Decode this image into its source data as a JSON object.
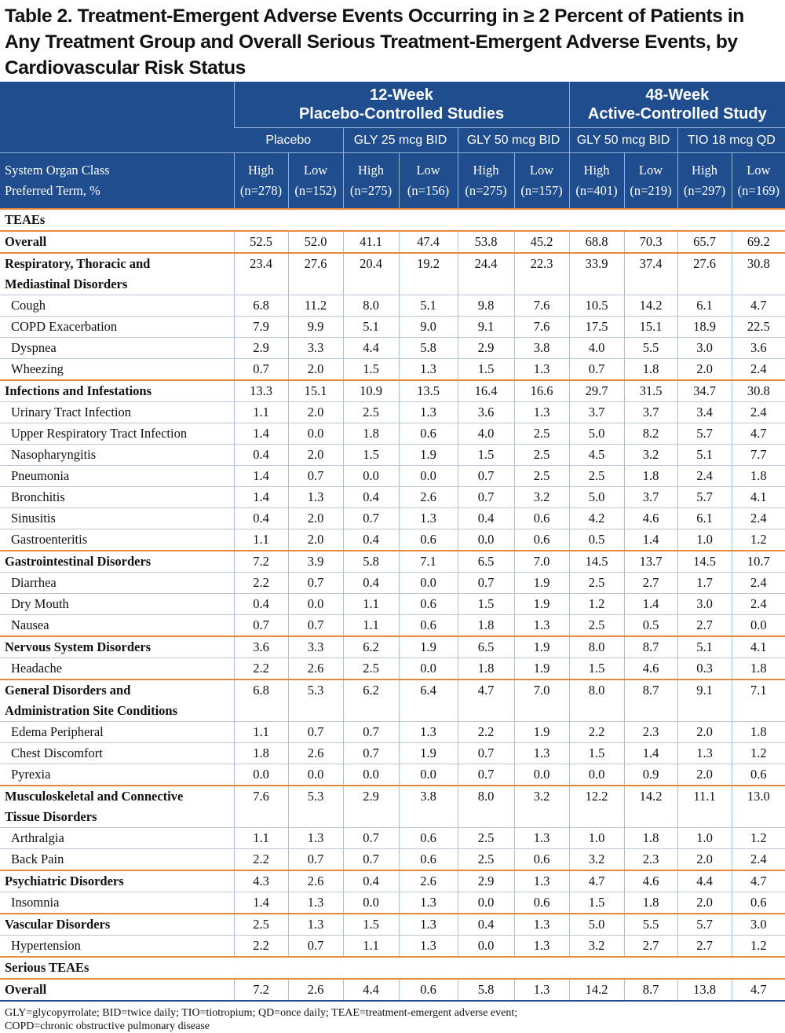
{
  "title": "Table 2. Treatment-Emergent Adverse Events Occurring in ≥ 2 Percent of Patients in Any Treatment Group and Overall Serious Treatment-Emergent Adverse Events, by Cardiovascular Risk Status",
  "table": {
    "groups": [
      {
        "lines": [
          "12-Week",
          "Placebo-Controlled Studies"
        ],
        "span": 6
      },
      {
        "lines": [
          "48-Week",
          "Active-Controlled Study"
        ],
        "span": 4
      }
    ],
    "subgroups": [
      "Placebo",
      "GLY 25 mcg BID",
      "GLY 50 mcg BID",
      "GLY 50 mcg BID",
      "TIO 18 mcg QD"
    ],
    "stub_header": [
      "System Organ Class",
      "Preferred Term, %"
    ],
    "columns": [
      {
        "level": "High",
        "n": "(n=278)"
      },
      {
        "level": "Low",
        "n": "(n=152)"
      },
      {
        "level": "High",
        "n": "(n=275)"
      },
      {
        "level": "Low",
        "n": "(n=156)"
      },
      {
        "level": "High",
        "n": "(n=275)"
      },
      {
        "level": "Low",
        "n": "(n=157)"
      },
      {
        "level": "High",
        "n": "(n=401)"
      },
      {
        "level": "Low",
        "n": "(n=219)"
      },
      {
        "level": "High",
        "n": "(n=297)"
      },
      {
        "level": "Low",
        "n": "(n=169)"
      }
    ],
    "rows": [
      {
        "kind": "section",
        "label": "TEAEs"
      },
      {
        "kind": "category",
        "label": "Overall",
        "values": [
          "52.5",
          "52.0",
          "41.1",
          "47.4",
          "53.8",
          "45.2",
          "68.8",
          "70.3",
          "65.7",
          "69.2"
        ]
      },
      {
        "kind": "category",
        "label": [
          "Respiratory, Thoracic and",
          "Mediastinal Disorders"
        ],
        "values": [
          "23.4",
          "27.6",
          "20.4",
          "19.2",
          "24.4",
          "22.3",
          "33.9",
          "37.4",
          "27.6",
          "30.8"
        ]
      },
      {
        "kind": "term",
        "label": "Cough",
        "values": [
          "6.8",
          "11.2",
          "8.0",
          "5.1",
          "9.8",
          "7.6",
          "10.5",
          "14.2",
          "6.1",
          "4.7"
        ]
      },
      {
        "kind": "term",
        "label": "COPD Exacerbation",
        "values": [
          "7.9",
          "9.9",
          "5.1",
          "9.0",
          "9.1",
          "7.6",
          "17.5",
          "15.1",
          "18.9",
          "22.5"
        ]
      },
      {
        "kind": "term",
        "label": "Dyspnea",
        "values": [
          "2.9",
          "3.3",
          "4.4",
          "5.8",
          "2.9",
          "3.8",
          "4.0",
          "5.5",
          "3.0",
          "3.6"
        ]
      },
      {
        "kind": "term",
        "label": "Wheezing",
        "values": [
          "0.7",
          "2.0",
          "1.5",
          "1.3",
          "1.5",
          "1.3",
          "0.7",
          "1.8",
          "2.0",
          "2.4"
        ]
      },
      {
        "kind": "category",
        "label": "Infections and Infestations",
        "values": [
          "13.3",
          "15.1",
          "10.9",
          "13.5",
          "16.4",
          "16.6",
          "29.7",
          "31.5",
          "34.7",
          "30.8"
        ]
      },
      {
        "kind": "term",
        "label": "Urinary Tract Infection",
        "values": [
          "1.1",
          "2.0",
          "2.5",
          "1.3",
          "3.6",
          "1.3",
          "3.7",
          "3.7",
          "3.4",
          "2.4"
        ]
      },
      {
        "kind": "term",
        "label": "Upper Respiratory Tract Infection",
        "values": [
          "1.4",
          "0.0",
          "1.8",
          "0.6",
          "4.0",
          "2.5",
          "5.0",
          "8.2",
          "5.7",
          "4.7"
        ]
      },
      {
        "kind": "term",
        "label": "Nasopharyngitis",
        "values": [
          "0.4",
          "2.0",
          "1.5",
          "1.9",
          "1.5",
          "2.5",
          "4.5",
          "3.2",
          "5.1",
          "7.7"
        ]
      },
      {
        "kind": "term",
        "label": "Pneumonia",
        "values": [
          "1.4",
          "0.7",
          "0.0",
          "0.0",
          "0.7",
          "2.5",
          "2.5",
          "1.8",
          "2.4",
          "1.8"
        ]
      },
      {
        "kind": "term",
        "label": "Bronchitis",
        "values": [
          "1.4",
          "1.3",
          "0.4",
          "2.6",
          "0.7",
          "3.2",
          "5.0",
          "3.7",
          "5.7",
          "4.1"
        ]
      },
      {
        "kind": "term",
        "label": "Sinusitis",
        "values": [
          "0.4",
          "2.0",
          "0.7",
          "1.3",
          "0.4",
          "0.6",
          "4.2",
          "4.6",
          "6.1",
          "2.4"
        ]
      },
      {
        "kind": "term",
        "label": "Gastroenteritis",
        "values": [
          "1.1",
          "2.0",
          "0.4",
          "0.6",
          "0.0",
          "0.6",
          "0.5",
          "1.4",
          "1.0",
          "1.2"
        ]
      },
      {
        "kind": "category",
        "label": "Gastrointestinal Disorders",
        "values": [
          "7.2",
          "3.9",
          "5.8",
          "7.1",
          "6.5",
          "7.0",
          "14.5",
          "13.7",
          "14.5",
          "10.7"
        ]
      },
      {
        "kind": "term",
        "label": "Diarrhea",
        "values": [
          "2.2",
          "0.7",
          "0.4",
          "0.0",
          "0.7",
          "1.9",
          "2.5",
          "2.7",
          "1.7",
          "2.4"
        ]
      },
      {
        "kind": "term",
        "label": "Dry Mouth",
        "values": [
          "0.4",
          "0.0",
          "1.1",
          "0.6",
          "1.5",
          "1.9",
          "1.2",
          "1.4",
          "3.0",
          "2.4"
        ]
      },
      {
        "kind": "term",
        "label": "Nausea",
        "values": [
          "0.7",
          "0.7",
          "1.1",
          "0.6",
          "1.8",
          "1.3",
          "2.5",
          "0.5",
          "2.7",
          "0.0"
        ]
      },
      {
        "kind": "category",
        "label": "Nervous System Disorders",
        "values": [
          "3.6",
          "3.3",
          "6.2",
          "1.9",
          "6.5",
          "1.9",
          "8.0",
          "8.7",
          "5.1",
          "4.1"
        ]
      },
      {
        "kind": "term",
        "label": "Headache",
        "values": [
          "2.2",
          "2.6",
          "2.5",
          "0.0",
          "1.8",
          "1.9",
          "1.5",
          "4.6",
          "0.3",
          "1.8"
        ]
      },
      {
        "kind": "category",
        "label": [
          "General Disorders and",
          "Administration Site Conditions"
        ],
        "values": [
          "6.8",
          "5.3",
          "6.2",
          "6.4",
          "4.7",
          "7.0",
          "8.0",
          "8.7",
          "9.1",
          "7.1"
        ]
      },
      {
        "kind": "term",
        "label": "Edema Peripheral",
        "values": [
          "1.1",
          "0.7",
          "0.7",
          "1.3",
          "2.2",
          "1.9",
          "2.2",
          "2.3",
          "2.0",
          "1.8"
        ]
      },
      {
        "kind": "term",
        "label": "Chest Discomfort",
        "values": [
          "1.8",
          "2.6",
          "0.7",
          "1.9",
          "0.7",
          "1.3",
          "1.5",
          "1.4",
          "1.3",
          "1.2"
        ]
      },
      {
        "kind": "term",
        "label": "Pyrexia",
        "values": [
          "0.0",
          "0.0",
          "0.0",
          "0.0",
          "0.7",
          "0.0",
          "0.0",
          "0.9",
          "2.0",
          "0.6"
        ]
      },
      {
        "kind": "category",
        "label": [
          "Musculoskeletal and Connective",
          "Tissue Disorders"
        ],
        "values": [
          "7.6",
          "5.3",
          "2.9",
          "3.8",
          "8.0",
          "3.2",
          "12.2",
          "14.2",
          "11.1",
          "13.0"
        ]
      },
      {
        "kind": "term",
        "label": "Arthralgia",
        "values": [
          "1.1",
          "1.3",
          "0.7",
          "0.6",
          "2.5",
          "1.3",
          "1.0",
          "1.8",
          "1.0",
          "1.2"
        ]
      },
      {
        "kind": "term",
        "label": "Back Pain",
        "values": [
          "2.2",
          "0.7",
          "0.7",
          "0.6",
          "2.5",
          "0.6",
          "3.2",
          "2.3",
          "2.0",
          "2.4"
        ]
      },
      {
        "kind": "category",
        "label": "Psychiatric Disorders",
        "values": [
          "4.3",
          "2.6",
          "0.4",
          "2.6",
          "2.9",
          "1.3",
          "4.7",
          "4.6",
          "4.4",
          "4.7"
        ]
      },
      {
        "kind": "term",
        "label": "Insomnia",
        "values": [
          "1.4",
          "1.3",
          "0.0",
          "1.3",
          "0.0",
          "0.6",
          "1.5",
          "1.8",
          "2.0",
          "0.6"
        ]
      },
      {
        "kind": "category",
        "label": "Vascular Disorders",
        "values": [
          "2.5",
          "1.3",
          "1.5",
          "1.3",
          "0.4",
          "1.3",
          "5.0",
          "5.5",
          "5.7",
          "3.0"
        ]
      },
      {
        "kind": "term",
        "label": "Hypertension",
        "values": [
          "2.2",
          "0.7",
          "1.1",
          "1.3",
          "0.0",
          "1.3",
          "3.2",
          "2.7",
          "2.7",
          "1.2"
        ]
      },
      {
        "kind": "section",
        "label": "Serious TEAEs"
      },
      {
        "kind": "category",
        "label": "Overall",
        "values": [
          "7.2",
          "2.6",
          "4.4",
          "0.6",
          "5.8",
          "1.3",
          "14.2",
          "8.7",
          "13.8",
          "4.7"
        ]
      }
    ]
  },
  "footnote": [
    "GLY=glycopyrrolate; BID=twice daily; TIO=tiotropium; QD=once daily; TEAE=treatment-emergent adverse event;",
    "COPD=chronic obstructive pulmonary disease"
  ]
}
